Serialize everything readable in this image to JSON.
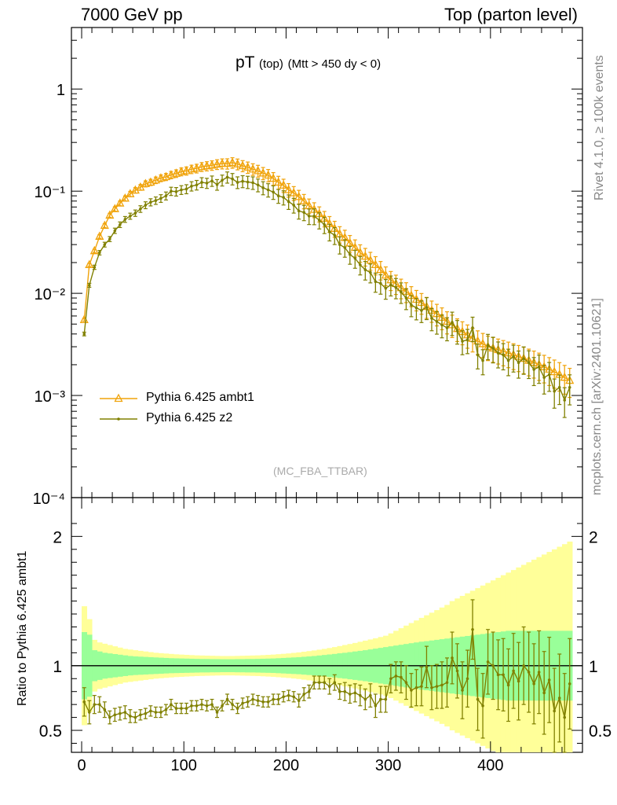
{
  "header": {
    "left": "7000 GeV pp",
    "right": "Top (parton level)"
  },
  "side_labels": {
    "top": "Rivet 4.1.0, ≥ 100k events",
    "bottom": "mcplots.cern.ch [arXiv:2401.10621]"
  },
  "chart_data": {
    "type": "line",
    "title_main": "pT",
    "title_sub": "(top)",
    "title_cuts": "(Mtt > 450 dy < 0)",
    "analysis": "(MC_FBA_TTBAR)",
    "xlim": [
      -10,
      490
    ],
    "main_ylim": [
      0.0001,
      4
    ],
    "main_ytick_labels": [
      "1",
      "10⁻¹",
      "10⁻²",
      "10⁻³",
      "10⁻⁴"
    ],
    "ratio_ylabel": "Ratio to Pythia 6.425 ambt1",
    "ratio_ylim": [
      0.33,
      2.3
    ],
    "ratio_ytick_labels": [
      "2",
      "1",
      "0.5"
    ],
    "xtick_labels": [
      "0",
      "100",
      "200",
      "300",
      "400"
    ],
    "x": [
      2.5,
      7.5,
      12.5,
      17.5,
      22.5,
      27.5,
      32.5,
      37.5,
      42.5,
      47.5,
      52.5,
      57.5,
      62.5,
      67.5,
      72.5,
      77.5,
      82.5,
      87.5,
      92.5,
      97.5,
      102.5,
      107.5,
      112.5,
      117.5,
      122.5,
      127.5,
      132.5,
      137.5,
      142.5,
      147.5,
      152.5,
      157.5,
      162.5,
      167.5,
      172.5,
      177.5,
      182.5,
      187.5,
      192.5,
      197.5,
      202.5,
      207.5,
      212.5,
      217.5,
      222.5,
      227.5,
      232.5,
      237.5,
      242.5,
      247.5,
      252.5,
      257.5,
      262.5,
      267.5,
      272.5,
      277.5,
      282.5,
      287.5,
      292.5,
      297.5,
      302.5,
      307.5,
      312.5,
      317.5,
      322.5,
      327.5,
      332.5,
      337.5,
      342.5,
      347.5,
      352.5,
      357.5,
      362.5,
      367.5,
      372.5,
      377.5,
      382.5,
      387.5,
      392.5,
      397.5,
      402.5,
      407.5,
      412.5,
      417.5,
      422.5,
      427.5,
      432.5,
      437.5,
      442.5,
      447.5,
      452.5,
      457.5,
      462.5,
      467.5,
      472.5,
      477.5
    ],
    "series": [
      {
        "name": "Pythia 6.425 ambt1",
        "color": "#f0a30a",
        "marker": "open-triangle",
        "values": [
          0.0055,
          0.019,
          0.026,
          0.036,
          0.046,
          0.058,
          0.067,
          0.076,
          0.085,
          0.094,
          0.102,
          0.109,
          0.118,
          0.122,
          0.128,
          0.134,
          0.138,
          0.144,
          0.149,
          0.155,
          0.158,
          0.164,
          0.167,
          0.173,
          0.176,
          0.179,
          0.183,
          0.186,
          0.186,
          0.19,
          0.184,
          0.177,
          0.171,
          0.164,
          0.158,
          0.15,
          0.143,
          0.133,
          0.122,
          0.114,
          0.103,
          0.096,
          0.088,
          0.08,
          0.072,
          0.066,
          0.06,
          0.054,
          0.048,
          0.043,
          0.038,
          0.035,
          0.031,
          0.028,
          0.025,
          0.023,
          0.021,
          0.019,
          0.017,
          0.015,
          0.0135,
          0.0124,
          0.0113,
          0.0104,
          0.0095,
          0.0087,
          0.0081,
          0.0074,
          0.0068,
          0.0063,
          0.0058,
          0.0053,
          0.0049,
          0.0045,
          0.0042,
          0.0039,
          0.0036,
          0.0034,
          0.0032,
          0.003,
          0.0029,
          0.0028,
          0.0027,
          0.0026,
          0.0025,
          0.0024,
          0.0023,
          0.0022,
          0.0021,
          0.002,
          0.0019,
          0.0018,
          0.0017,
          0.0016,
          0.0015,
          0.0014
        ],
        "ratio_band_inner": [
          0.26,
          0.24,
          0.12,
          0.11,
          0.1,
          0.095,
          0.09,
          0.085,
          0.08,
          0.075,
          0.072,
          0.07,
          0.068,
          0.066,
          0.064,
          0.062,
          0.06,
          0.058,
          0.057,
          0.056,
          0.055,
          0.054,
          0.053,
          0.052,
          0.052,
          0.051,
          0.051,
          0.05,
          0.05,
          0.05,
          0.051,
          0.051,
          0.052,
          0.052,
          0.053,
          0.054,
          0.055,
          0.056,
          0.058,
          0.06,
          0.062,
          0.064,
          0.066,
          0.069,
          0.072,
          0.075,
          0.079,
          0.083,
          0.087,
          0.091,
          0.096,
          0.1,
          0.105,
          0.11,
          0.115,
          0.12,
          0.126,
          0.132,
          0.138,
          0.144,
          0.15,
          0.156,
          0.162,
          0.168,
          0.174,
          0.18,
          0.186,
          0.19,
          0.195,
          0.2,
          0.205,
          0.21,
          0.215,
          0.22,
          0.225,
          0.23,
          0.235,
          0.24,
          0.245,
          0.25,
          0.255,
          0.26,
          0.265,
          0.27,
          0.27,
          0.27,
          0.27,
          0.27,
          0.27,
          0.27,
          0.27,
          0.27,
          0.27,
          0.27,
          0.27,
          0.27
        ],
        "ratio_band_outer": [
          0.46,
          0.36,
          0.2,
          0.18,
          0.17,
          0.16,
          0.15,
          0.14,
          0.13,
          0.125,
          0.12,
          0.115,
          0.11,
          0.105,
          0.1,
          0.097,
          0.094,
          0.091,
          0.088,
          0.086,
          0.084,
          0.082,
          0.08,
          0.079,
          0.078,
          0.077,
          0.076,
          0.075,
          0.075,
          0.075,
          0.076,
          0.077,
          0.078,
          0.079,
          0.08,
          0.082,
          0.084,
          0.086,
          0.089,
          0.092,
          0.095,
          0.099,
          0.103,
          0.108,
          0.113,
          0.118,
          0.124,
          0.13,
          0.137,
          0.144,
          0.152,
          0.16,
          0.168,
          0.176,
          0.185,
          0.194,
          0.203,
          0.212,
          0.222,
          0.232,
          0.25,
          0.27,
          0.29,
          0.31,
          0.33,
          0.35,
          0.37,
          0.39,
          0.41,
          0.43,
          0.45,
          0.47,
          0.5,
          0.52,
          0.54,
          0.56,
          0.58,
          0.6,
          0.62,
          0.64,
          0.66,
          0.68,
          0.7,
          0.72,
          0.74,
          0.76,
          0.78,
          0.8,
          0.82,
          0.84,
          0.86,
          0.88,
          0.9,
          0.92,
          0.94,
          0.96
        ]
      },
      {
        "name": "Pythia 6.425 z2",
        "color": "#808000",
        "marker": "dot",
        "values": [
          0.004,
          0.012,
          0.018,
          0.025,
          0.03,
          0.034,
          0.041,
          0.047,
          0.053,
          0.057,
          0.061,
          0.067,
          0.073,
          0.078,
          0.081,
          0.085,
          0.09,
          0.1,
          0.099,
          0.103,
          0.105,
          0.112,
          0.115,
          0.122,
          0.12,
          0.126,
          0.116,
          0.128,
          0.137,
          0.132,
          0.122,
          0.125,
          0.123,
          0.121,
          0.115,
          0.108,
          0.103,
          0.098,
          0.09,
          0.087,
          0.079,
          0.073,
          0.064,
          0.062,
          0.057,
          0.057,
          0.052,
          0.047,
          0.04,
          0.037,
          0.03,
          0.028,
          0.024,
          0.022,
          0.019,
          0.017,
          0.016,
          0.013,
          0.0125,
          0.0112,
          0.0121,
          0.0114,
          0.0103,
          0.009,
          0.0077,
          0.0072,
          0.0068,
          0.0073,
          0.0057,
          0.0053,
          0.0049,
          0.0046,
          0.0052,
          0.0043,
          0.0034,
          0.0035,
          0.0046,
          0.0025,
          0.0022,
          0.0031,
          0.0029,
          0.0026,
          0.0025,
          0.0022,
          0.0024,
          0.0021,
          0.0023,
          0.0021,
          0.0018,
          0.0019,
          0.0015,
          0.0016,
          0.0011,
          0.0012,
          0.0009,
          0.0012
        ],
        "ratio_values": [
          0.72,
          0.64,
          0.7,
          0.7,
          0.66,
          0.6,
          0.62,
          0.63,
          0.64,
          0.61,
          0.6,
          0.62,
          0.63,
          0.65,
          0.64,
          0.64,
          0.66,
          0.7,
          0.67,
          0.67,
          0.67,
          0.69,
          0.69,
          0.7,
          0.69,
          0.7,
          0.64,
          0.69,
          0.74,
          0.7,
          0.67,
          0.71,
          0.72,
          0.74,
          0.73,
          0.72,
          0.72,
          0.74,
          0.74,
          0.76,
          0.77,
          0.76,
          0.73,
          0.78,
          0.8,
          0.87,
          0.87,
          0.87,
          0.84,
          0.87,
          0.8,
          0.8,
          0.78,
          0.79,
          0.77,
          0.74,
          0.77,
          0.69,
          0.74,
          0.74,
          0.9,
          0.92,
          0.91,
          0.87,
          0.81,
          0.83,
          0.84,
          0.99,
          0.83,
          0.84,
          0.85,
          0.87,
          1.06,
          0.96,
          0.81,
          0.9,
          1.28,
          0.74,
          0.69,
          1.03,
          1.0,
          0.93,
          0.93,
          0.85,
          0.96,
          0.88,
          1.0,
          0.95,
          0.86,
          0.95,
          0.79,
          0.89,
          0.65,
          0.75,
          0.6,
          0.86
        ],
        "ratio_errors": [
          0.11,
          0.09,
          0.07,
          0.06,
          0.06,
          0.05,
          0.05,
          0.05,
          0.05,
          0.05,
          0.04,
          0.04,
          0.04,
          0.04,
          0.04,
          0.04,
          0.04,
          0.04,
          0.04,
          0.04,
          0.04,
          0.04,
          0.04,
          0.04,
          0.04,
          0.04,
          0.04,
          0.04,
          0.04,
          0.04,
          0.04,
          0.04,
          0.04,
          0.04,
          0.04,
          0.04,
          0.04,
          0.04,
          0.04,
          0.04,
          0.04,
          0.04,
          0.05,
          0.05,
          0.05,
          0.05,
          0.05,
          0.05,
          0.06,
          0.06,
          0.06,
          0.07,
          0.07,
          0.07,
          0.08,
          0.08,
          0.09,
          0.09,
          0.1,
          0.1,
          0.11,
          0.11,
          0.12,
          0.13,
          0.13,
          0.14,
          0.15,
          0.16,
          0.17,
          0.17,
          0.18,
          0.19,
          0.2,
          0.21,
          0.22,
          0.22,
          0.23,
          0.24,
          0.25,
          0.25,
          0.26,
          0.27,
          0.28,
          0.28,
          0.29,
          0.3,
          0.3,
          0.31,
          0.31,
          0.32,
          0.32,
          0.33,
          0.33,
          0.34,
          0.34,
          0.35
        ]
      }
    ]
  }
}
